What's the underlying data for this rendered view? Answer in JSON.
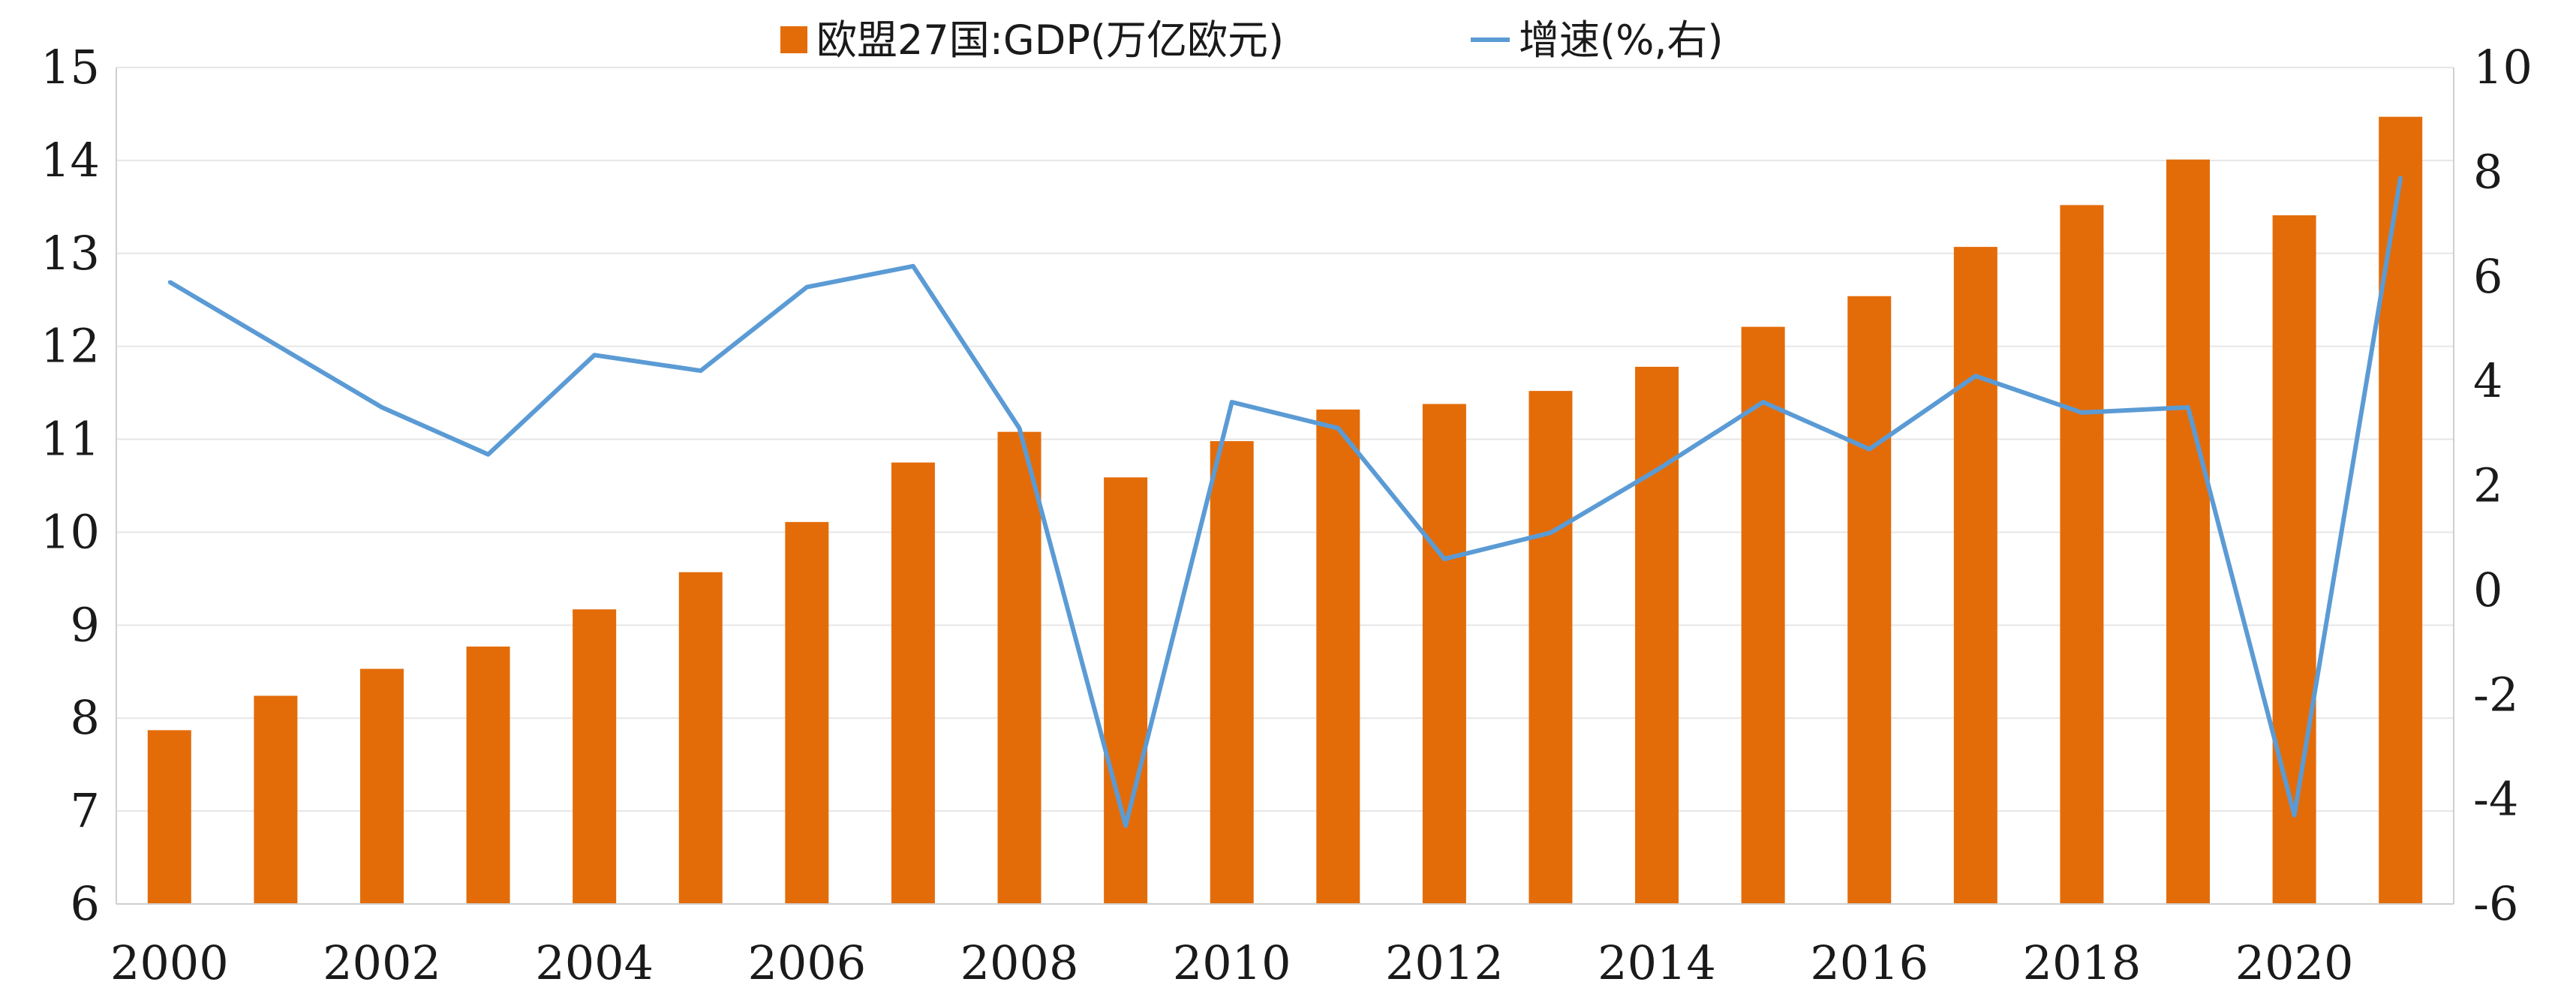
{
  "chart_data": {
    "type": "bar",
    "title": "",
    "xlabel": "",
    "ylabel": "",
    "legend_position": "top-center",
    "grid": true,
    "categories": [
      "2000",
      "2001",
      "2002",
      "2003",
      "2004",
      "2005",
      "2006",
      "2007",
      "2008",
      "2009",
      "2010",
      "2011",
      "2012",
      "2013",
      "2014",
      "2015",
      "2016",
      "2017",
      "2018",
      "2019",
      "2020",
      "2021"
    ],
    "x_tick_labels": [
      "2000",
      "2002",
      "2004",
      "2006",
      "2008",
      "2010",
      "2012",
      "2014",
      "2016",
      "2018",
      "2020"
    ],
    "y_left": {
      "min": 6,
      "max": 15,
      "ticks": [
        "6",
        "7",
        "8",
        "9",
        "10",
        "11",
        "12",
        "13",
        "14",
        "15"
      ]
    },
    "y_right": {
      "min": -6,
      "max": 10,
      "ticks": [
        "-6",
        "-4",
        "-2",
        "0",
        "2",
        "4",
        "6",
        "8",
        "10"
      ]
    },
    "series": [
      {
        "name": "欧盟27国:GDP(万亿欧元)",
        "type": "bar",
        "axis": "left",
        "color": "#E36C09",
        "values": [
          7.87,
          8.24,
          8.53,
          8.77,
          9.17,
          9.57,
          10.11,
          10.75,
          11.08,
          10.59,
          10.98,
          11.32,
          11.38,
          11.52,
          11.78,
          12.21,
          12.54,
          13.07,
          13.52,
          14.01,
          13.41,
          14.47
        ]
      },
      {
        "name": "增速(%,右)",
        "type": "line",
        "axis": "right",
        "color": "#5B9BD5",
        "values": [
          5.9,
          4.7,
          3.5,
          2.6,
          4.5,
          4.2,
          5.8,
          6.2,
          3.1,
          -4.5,
          3.6,
          3.1,
          0.6,
          1.1,
          2.3,
          3.6,
          2.7,
          4.1,
          3.4,
          3.5,
          -4.3,
          7.9
        ]
      }
    ]
  }
}
